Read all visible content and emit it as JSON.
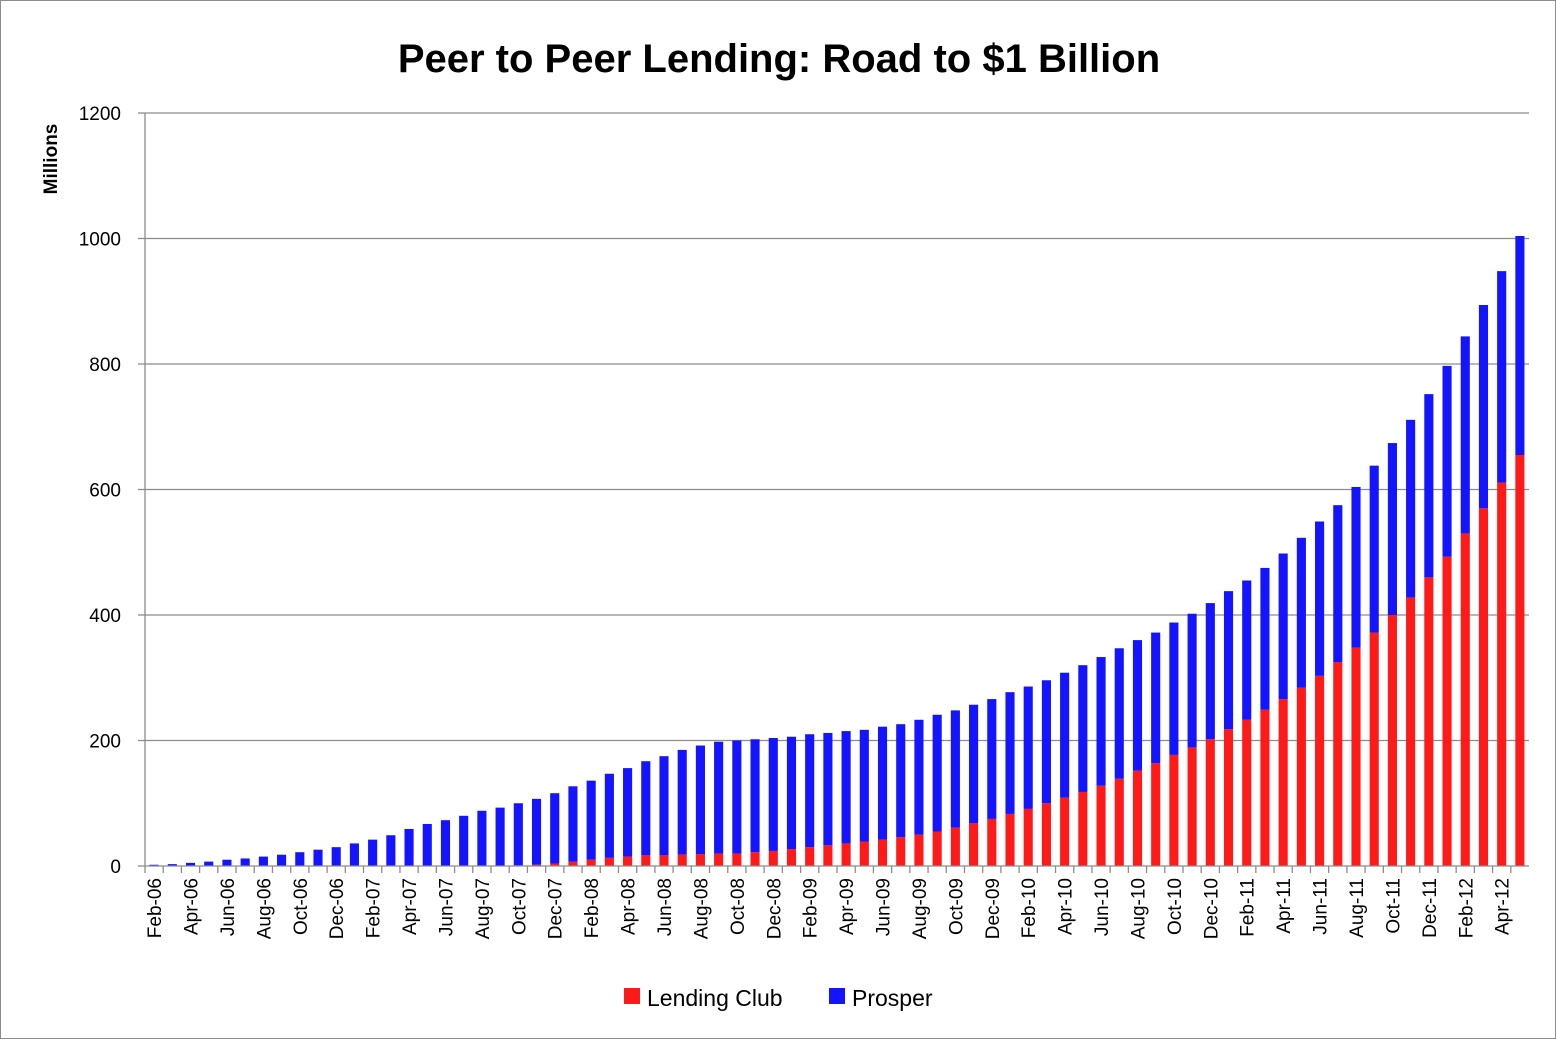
{
  "chart_data": {
    "type": "bar",
    "stacked": true,
    "title": "Peer to Peer Lending: Road to $1 Billion",
    "ylabel": "Millions",
    "xlabel": "",
    "ylim": [
      0,
      1200
    ],
    "yticks": [
      0,
      200,
      400,
      600,
      800,
      1000,
      1200
    ],
    "grid": true,
    "legend_position": "bottom",
    "categories": [
      "Feb-06",
      "Mar-06",
      "Apr-06",
      "May-06",
      "Jun-06",
      "Jul-06",
      "Aug-06",
      "Sep-06",
      "Oct-06",
      "Nov-06",
      "Dec-06",
      "Jan-07",
      "Feb-07",
      "Mar-07",
      "Apr-07",
      "May-07",
      "Jun-07",
      "Jul-07",
      "Aug-07",
      "Sep-07",
      "Oct-07",
      "Nov-07",
      "Dec-07",
      "Jan-08",
      "Feb-08",
      "Mar-08",
      "Apr-08",
      "May-08",
      "Jun-08",
      "Jul-08",
      "Aug-08",
      "Sep-08",
      "Oct-08",
      "Nov-08",
      "Dec-08",
      "Jan-09",
      "Feb-09",
      "Mar-09",
      "Apr-09",
      "May-09",
      "Jun-09",
      "Jul-09",
      "Aug-09",
      "Sep-09",
      "Oct-09",
      "Nov-09",
      "Dec-09",
      "Jan-10",
      "Feb-10",
      "Mar-10",
      "Apr-10",
      "May-10",
      "Jun-10",
      "Jul-10",
      "Aug-10",
      "Sep-10",
      "Oct-10",
      "Nov-10",
      "Dec-10",
      "Jan-11",
      "Feb-11",
      "Mar-11",
      "Apr-11",
      "May-11",
      "Jun-11",
      "Jul-11",
      "Aug-11",
      "Sep-11",
      "Oct-11",
      "Nov-11",
      "Dec-11",
      "Jan-12",
      "Feb-12",
      "Mar-12",
      "Apr-12",
      "May-12"
    ],
    "tick_labels": [
      "Feb-06",
      "Apr-06",
      "Jun-06",
      "Aug-06",
      "Oct-06",
      "Dec-06",
      "Feb-07",
      "Apr-07",
      "Jun-07",
      "Aug-07",
      "Oct-07",
      "Dec-07",
      "Feb-08",
      "Apr-08",
      "Jun-08",
      "Aug-08",
      "Oct-08",
      "Dec-08",
      "Feb-09",
      "Apr-09",
      "Jun-09",
      "Aug-09",
      "Oct-09",
      "Dec-09",
      "Feb-10",
      "Apr-10",
      "Jun-10",
      "Aug-10",
      "Oct-10",
      "Dec-10",
      "Feb-11",
      "Apr-11",
      "Jun-11",
      "Aug-11",
      "Oct-11",
      "Dec-11",
      "Feb-12",
      "Apr-12"
    ],
    "series": [
      {
        "name": "Lending Club",
        "color": "#ff1a1a",
        "values": [
          0,
          0,
          0,
          0,
          0,
          0,
          0,
          0,
          0,
          0,
          0,
          0,
          0,
          0,
          0,
          0,
          0,
          0,
          0,
          0,
          1,
          2,
          4,
          7,
          10,
          13,
          15,
          17,
          17,
          18,
          19,
          20,
          20,
          22,
          24,
          27,
          30,
          33,
          36,
          39,
          42,
          46,
          50,
          55,
          61,
          68,
          75,
          83,
          91,
          100,
          109,
          118,
          128,
          139,
          152,
          164,
          177,
          189,
          202,
          218,
          233,
          249,
          266,
          284,
          303,
          325,
          348,
          372,
          400,
          428,
          460,
          493,
          530,
          570,
          611,
          655
        ]
      },
      {
        "name": "Prosper",
        "color": "#1414ff",
        "values": [
          2,
          3,
          5,
          7,
          10,
          12,
          15,
          18,
          22,
          26,
          30,
          36,
          42,
          49,
          59,
          67,
          73,
          80,
          88,
          93,
          99,
          105,
          112,
          120,
          126,
          134,
          141,
          150,
          158,
          167,
          173,
          178,
          180,
          180,
          180,
          179,
          180,
          179,
          179,
          178,
          180,
          180,
          183,
          186,
          187,
          189,
          191,
          194,
          195,
          196,
          199,
          202,
          205,
          208,
          208,
          208,
          211,
          213,
          217,
          220,
          222,
          226,
          232,
          239,
          246,
          250,
          256,
          266,
          274,
          283,
          292,
          304,
          314,
          324,
          337,
          349
        ]
      }
    ]
  }
}
